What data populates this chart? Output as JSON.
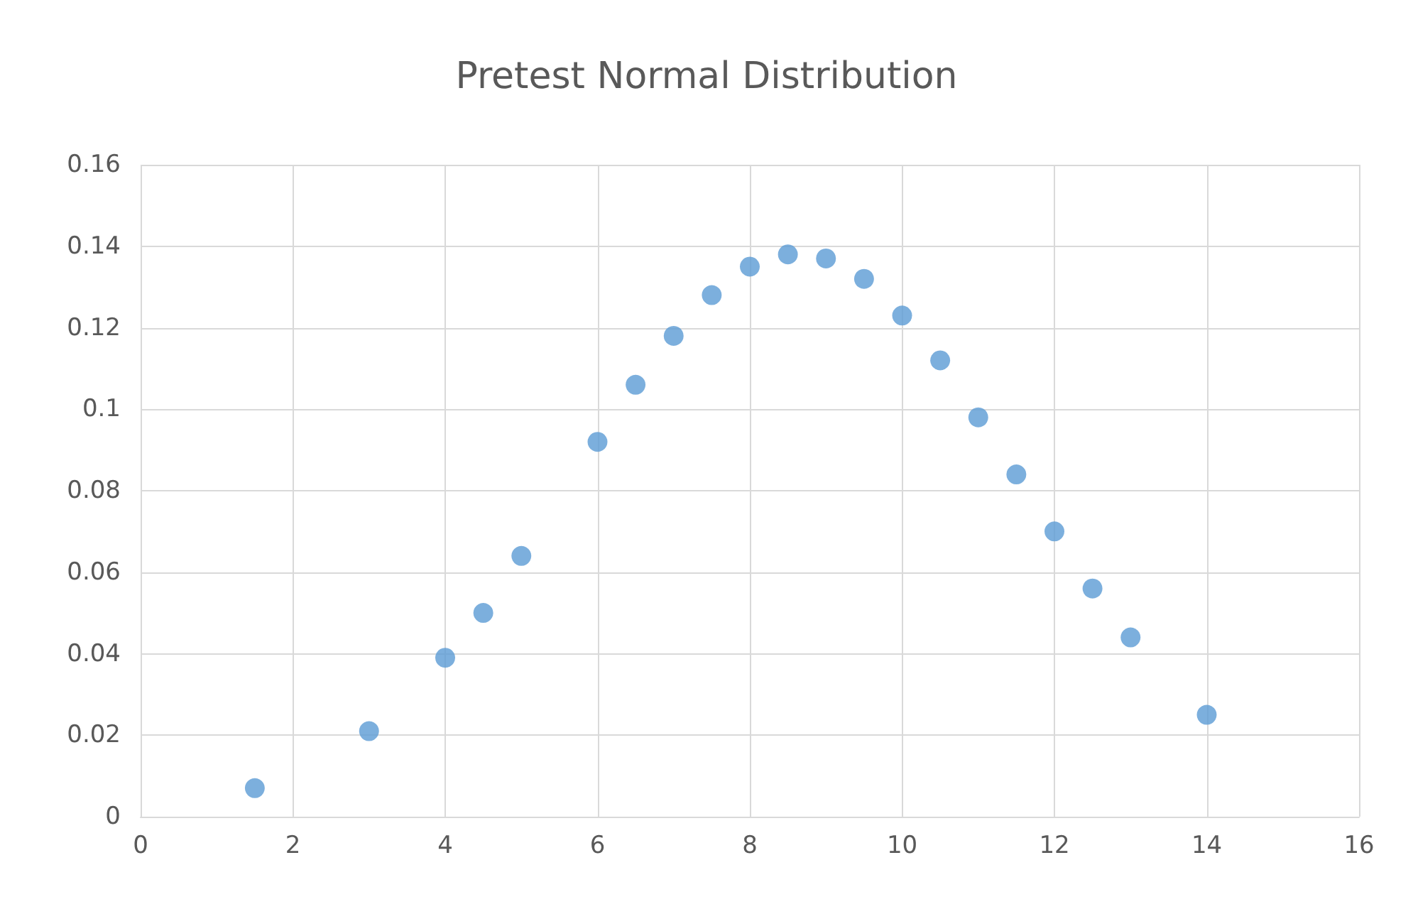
{
  "chart_data": {
    "type": "scatter",
    "title": "Pretest Normal Distribution",
    "x": [
      1.5,
      3,
      4,
      4.5,
      5,
      6,
      6.5,
      7,
      7.5,
      8,
      8.5,
      9,
      9.5,
      10,
      10.5,
      11,
      11.5,
      12,
      12.5,
      13,
      14
    ],
    "series": [
      {
        "color": "#5b9bd5",
        "values": [
          0.007,
          0.021,
          0.039,
          0.05,
          0.064,
          0.092,
          0.106,
          0.118,
          0.128,
          0.135,
          0.138,
          0.137,
          0.132,
          0.123,
          0.112,
          0.098,
          0.084,
          0.07,
          0.056,
          0.044,
          0.025
        ]
      }
    ],
    "xlim": [
      0,
      16
    ],
    "xticks": [
      0,
      2,
      4,
      6,
      8,
      10,
      12,
      14,
      16
    ],
    "ylim": [
      0,
      0.16
    ],
    "yticks": [
      0,
      0.02,
      0.04,
      0.06,
      0.08,
      0.1,
      0.12,
      0.14,
      0.16
    ],
    "grid": true,
    "marker": "circle"
  }
}
